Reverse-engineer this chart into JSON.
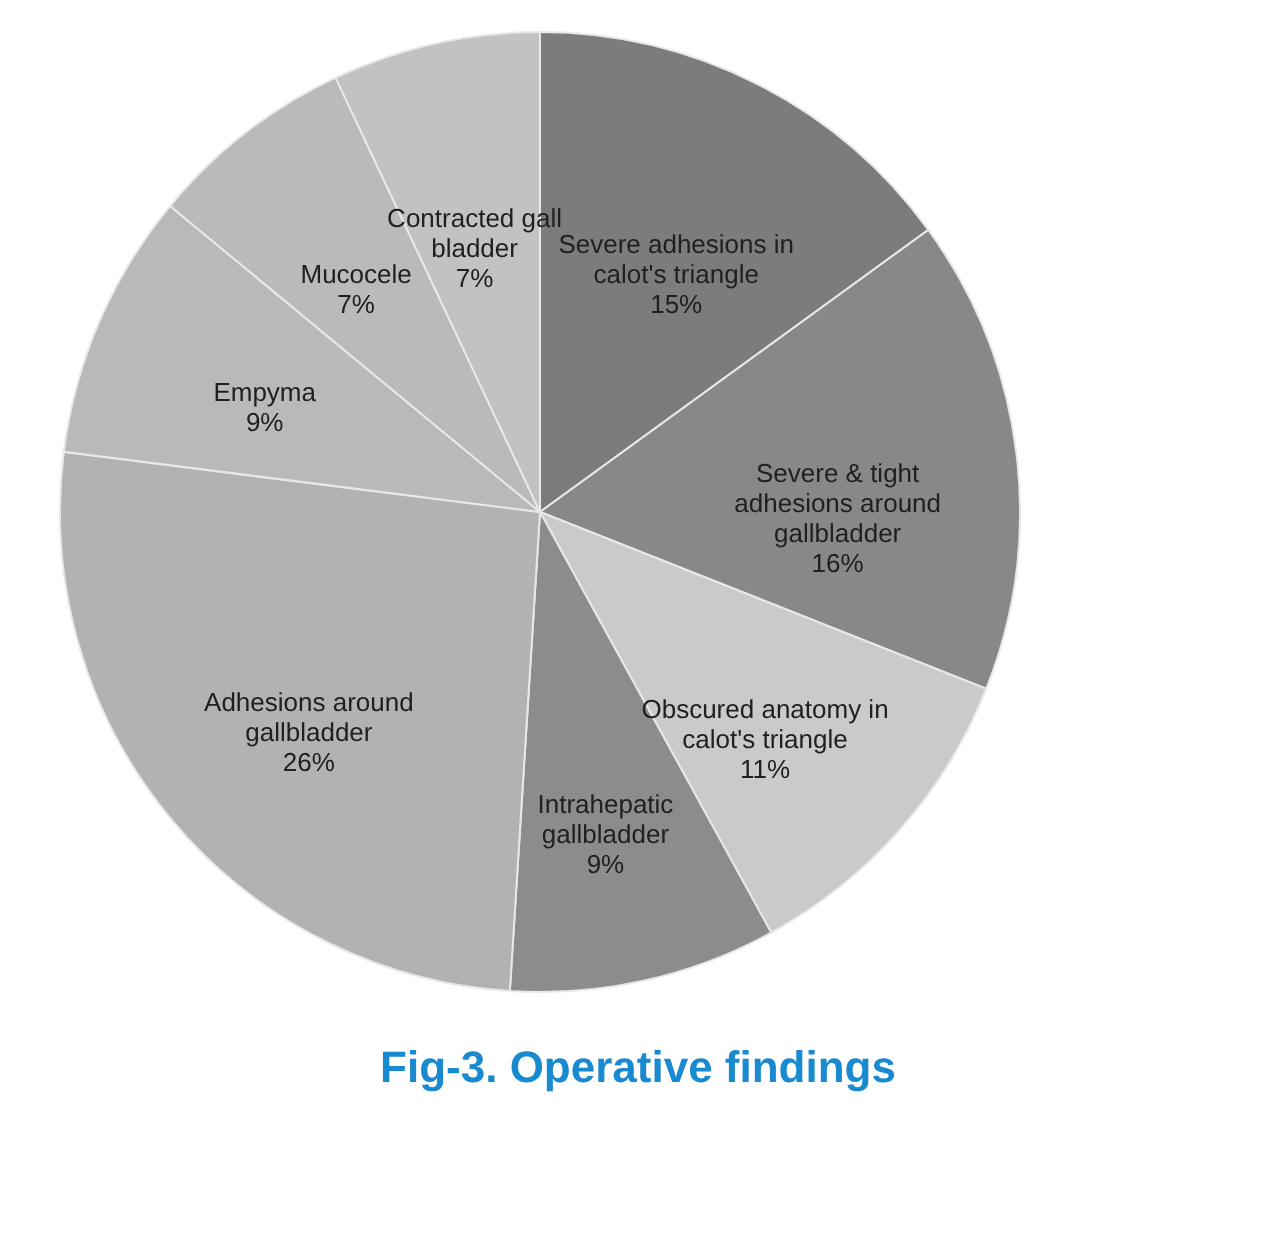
{
  "chart_data": {
    "type": "pie",
    "title": "Fig-3. Operative findings",
    "categories": [
      "Severe adhesions in calot's triangle",
      "Severe & tight adhesions around gallbladder",
      "Obscured anatomy in calot's triangle",
      "Intrahepatic gallbladder",
      "Adhesions around gallbladder",
      "Empyma",
      "Mucocele",
      "Contracted gall bladder"
    ],
    "values": [
      15,
      16,
      11,
      9,
      26,
      9,
      7,
      7
    ],
    "value_labels": [
      "15%",
      "16%",
      "11%",
      "9%",
      "26%",
      "9%",
      "7%",
      "7%"
    ],
    "colors": [
      "#7c7c7c",
      "#888888",
      "#cacaca",
      "#8c8c8c",
      "#b2b2b2",
      "#b9b9b9",
      "#bababa",
      "#c2c2c2"
    ],
    "legend": false
  }
}
